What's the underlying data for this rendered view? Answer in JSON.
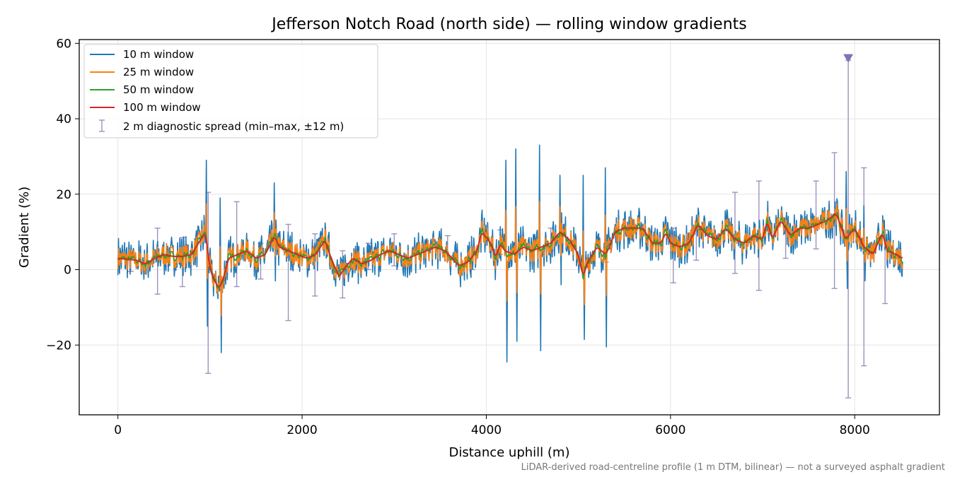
{
  "chart_data": {
    "type": "line",
    "title": "Jefferson Notch Road (north side) — rolling window gradients",
    "xlabel": "Distance uphill (m)",
    "ylabel": "Gradient (%)",
    "xlim": [
      -420,
      8920
    ],
    "ylim": [
      -38.5,
      61
    ],
    "xticks": [
      0,
      2000,
      4000,
      6000,
      8000
    ],
    "yticks": [
      -20,
      0,
      20,
      40,
      60
    ],
    "grid": true,
    "legend_position": "top-left",
    "footnote": "LiDAR-derived road-centreline profile (1 m DTM, bilinear) — not a surveyed asphalt gradient",
    "series": [
      {
        "name": "10 m window",
        "color": "#1f77b4"
      },
      {
        "name": "25 m window",
        "color": "#ff7f0e"
      },
      {
        "name": "50 m window",
        "color": "#2ca02c"
      },
      {
        "name": "100 m window",
        "color": "#d62728"
      }
    ],
    "trend": [
      [
        0,
        3
      ],
      [
        200,
        2.5
      ],
      [
        300,
        1.5
      ],
      [
        400,
        3
      ],
      [
        500,
        4
      ],
      [
        600,
        3.5
      ],
      [
        700,
        3.5
      ],
      [
        800,
        4
      ],
      [
        900,
        8
      ],
      [
        950,
        10
      ],
      [
        1000,
        0
      ],
      [
        1050,
        -3
      ],
      [
        1100,
        -5
      ],
      [
        1150,
        -2
      ],
      [
        1200,
        3
      ],
      [
        1300,
        4
      ],
      [
        1400,
        5
      ],
      [
        1500,
        3
      ],
      [
        1600,
        4
      ],
      [
        1700,
        9
      ],
      [
        1750,
        6
      ],
      [
        1850,
        5
      ],
      [
        1950,
        4
      ],
      [
        2050,
        3
      ],
      [
        2150,
        4
      ],
      [
        2250,
        8
      ],
      [
        2300,
        4
      ],
      [
        2400,
        -2
      ],
      [
        2450,
        0
      ],
      [
        2550,
        3
      ],
      [
        2650,
        1.5
      ],
      [
        2750,
        2.5
      ],
      [
        2850,
        4
      ],
      [
        2950,
        5
      ],
      [
        3050,
        4
      ],
      [
        3150,
        3
      ],
      [
        3250,
        4
      ],
      [
        3350,
        5
      ],
      [
        3450,
        6
      ],
      [
        3550,
        5
      ],
      [
        3650,
        2.5
      ],
      [
        3700,
        1
      ],
      [
        3800,
        2
      ],
      [
        3900,
        5
      ],
      [
        3950,
        10
      ],
      [
        4050,
        7
      ],
      [
        4100,
        3
      ],
      [
        4150,
        7
      ],
      [
        4200,
        5
      ],
      [
        4300,
        4
      ],
      [
        4400,
        6
      ],
      [
        4500,
        5
      ],
      [
        4600,
        6
      ],
      [
        4700,
        7
      ],
      [
        4800,
        10
      ],
      [
        4900,
        8
      ],
      [
        5000,
        4
      ],
      [
        5050,
        -2
      ],
      [
        5100,
        2
      ],
      [
        5200,
        6
      ],
      [
        5300,
        4
      ],
      [
        5400,
        10
      ],
      [
        5500,
        11
      ],
      [
        5600,
        11
      ],
      [
        5700,
        11
      ],
      [
        5800,
        7
      ],
      [
        5900,
        7
      ],
      [
        5950,
        10
      ],
      [
        6000,
        7
      ],
      [
        6100,
        6
      ],
      [
        6200,
        7
      ],
      [
        6300,
        12
      ],
      [
        6400,
        9
      ],
      [
        6500,
        8
      ],
      [
        6600,
        11
      ],
      [
        6700,
        8
      ],
      [
        6800,
        7
      ],
      [
        6900,
        9
      ],
      [
        7000,
        8
      ],
      [
        7050,
        13
      ],
      [
        7100,
        8
      ],
      [
        7200,
        13
      ],
      [
        7300,
        9
      ],
      [
        7400,
        11
      ],
      [
        7500,
        11
      ],
      [
        7600,
        12
      ],
      [
        7700,
        13
      ],
      [
        7800,
        15
      ],
      [
        7900,
        8
      ],
      [
        8000,
        11
      ],
      [
        8100,
        6
      ],
      [
        8200,
        4
      ],
      [
        8300,
        10
      ],
      [
        8350,
        5
      ],
      [
        8450,
        4
      ],
      [
        8520,
        3
      ]
    ],
    "spikes": [
      [
        960,
        29,
        -15
      ],
      [
        1110,
        19,
        -22
      ],
      [
        1700,
        23,
        -3
      ],
      [
        4210,
        29,
        -24.5
      ],
      [
        4320,
        32,
        -19
      ],
      [
        4580,
        33,
        -21.5
      ],
      [
        4800,
        25,
        -4
      ],
      [
        5050,
        25,
        -18.5
      ],
      [
        5290,
        27,
        -20.5
      ],
      [
        7910,
        26,
        -5
      ],
      [
        8100,
        17,
        -3
      ]
    ],
    "error_bars": [
      [
        140,
        2,
        4.8,
        -0.5
      ],
      [
        430,
        3,
        11,
        -6.5
      ],
      [
        700,
        2.5,
        8.5,
        -4.5
      ],
      [
        980,
        8,
        20.5,
        -27.5
      ],
      [
        1290,
        5,
        18,
        -4.5
      ],
      [
        1550,
        3.5,
        7,
        -2.5
      ],
      [
        1850,
        4,
        12,
        -13.5
      ],
      [
        2140,
        3,
        9.5,
        -7
      ],
      [
        2440,
        2,
        5,
        -7.5
      ],
      [
        2720,
        3,
        7,
        0
      ],
      [
        3000,
        4,
        9.5,
        1
      ],
      [
        3580,
        6,
        9,
        2.5
      ],
      [
        3850,
        3,
        6,
        0
      ],
      [
        4150,
        7,
        10.5,
        4
      ],
      [
        4700,
        8,
        11,
        5
      ],
      [
        5300,
        5,
        7,
        2
      ],
      [
        6030,
        5,
        11,
        -3.5
      ],
      [
        6280,
        7,
        10.5,
        2.5
      ],
      [
        6700,
        10,
        20.5,
        -1
      ],
      [
        6960,
        10,
        23.5,
        -5.5
      ],
      [
        7250,
        10,
        13.5,
        3
      ],
      [
        7580,
        11,
        23.5,
        5.5
      ],
      [
        7780,
        14,
        31,
        -5
      ],
      [
        7930,
        14,
        55.5,
        -34
      ],
      [
        8100,
        9,
        27,
        -25.5
      ],
      [
        8330,
        8,
        10.5,
        -9
      ]
    ],
    "marker": {
      "x": 7930,
      "y": 56,
      "color": "#8172b2"
    },
    "diagnostic": {
      "label": "2 m diagnostic spread (min–max, ±12 m)",
      "color": "#9a93bd"
    }
  }
}
